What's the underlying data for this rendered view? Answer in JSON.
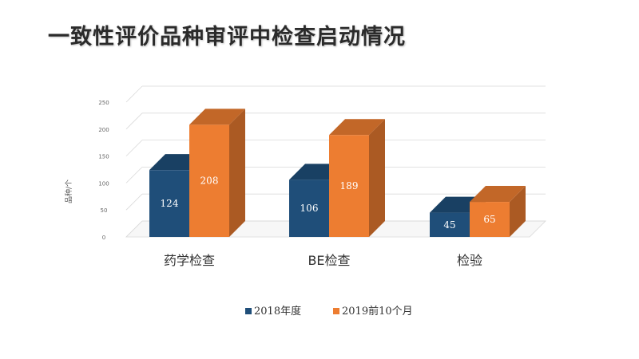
{
  "page": {
    "title": "一致性评价品种审评中检查启动情况"
  },
  "chart_data": {
    "type": "bar",
    "title": "一致性评价品种审评中检查启动情况",
    "ylabel": "品种/个",
    "xlabel": "",
    "ylim": [
      0,
      250
    ],
    "yticks": [
      0,
      50,
      100,
      150,
      200,
      250
    ],
    "categories": [
      "药学检查",
      "BE检查",
      "检验"
    ],
    "series": [
      {
        "name": "2018年度",
        "values": [
          124,
          106,
          45
        ],
        "color": "#1f4e79"
      },
      {
        "name": "2019前10个月",
        "values": [
          208,
          189,
          65
        ],
        "color": "#ed7d31"
      }
    ],
    "grid": true,
    "legend": "bottom",
    "style": "3d-column"
  }
}
